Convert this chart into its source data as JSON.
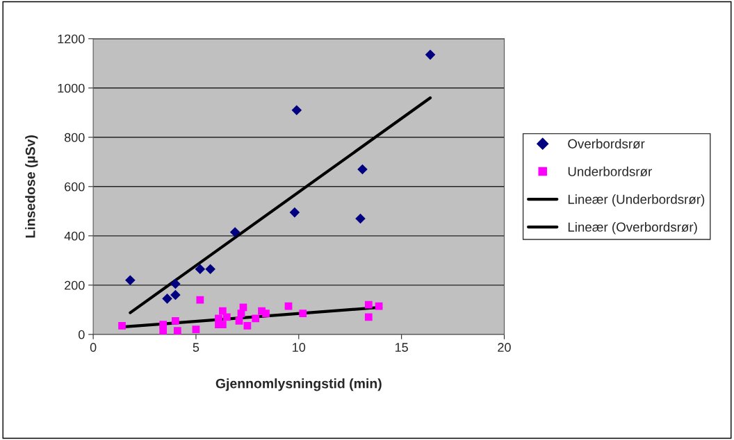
{
  "chart_data": {
    "type": "scatter",
    "xlabel": "Gjennomlysningstid (min)",
    "ylabel": "Linsedose (µSv)",
    "xlim": [
      0,
      20
    ],
    "xticks": [
      0,
      5,
      10,
      15,
      20
    ],
    "ylim": [
      0,
      1200
    ],
    "yticks": [
      0,
      200,
      400,
      600,
      800,
      1000,
      1200
    ],
    "grid": "y",
    "legend": "right",
    "series": [
      {
        "name": "Overbordsrør",
        "marker": "diamond",
        "color": "#000080",
        "x": [
          1.8,
          3.6,
          4.0,
          4.0,
          5.2,
          5.7,
          6.9,
          9.8,
          9.9,
          13.0,
          13.1,
          16.4
        ],
        "values": [
          220,
          145,
          160,
          205,
          265,
          265,
          415,
          495,
          910,
          470,
          670,
          1135
        ]
      },
      {
        "name": "Underbordsrør",
        "marker": "square",
        "color": "#ff00ff",
        "x": [
          1.4,
          3.4,
          3.4,
          4.0,
          4.1,
          5.0,
          5.2,
          6.1,
          6.1,
          6.3,
          6.3,
          6.5,
          7.1,
          7.2,
          7.3,
          7.5,
          7.9,
          8.2,
          8.4,
          9.5,
          10.2,
          13.4,
          13.4,
          13.9
        ],
        "values": [
          35,
          40,
          15,
          55,
          15,
          20,
          140,
          65,
          40,
          95,
          40,
          70,
          55,
          85,
          110,
          35,
          65,
          95,
          85,
          115,
          85,
          120,
          70,
          115
        ]
      },
      {
        "name": "Lineær (Underbordsrør)",
        "type": "line",
        "line_style": "solid",
        "color": "#000000",
        "x": [
          1.4,
          14.0
        ],
        "values": [
          30,
          110
        ]
      },
      {
        "name": "Lineær (Overbordsrør)",
        "type": "line",
        "line_style": "solid",
        "color": "#000000",
        "x": [
          1.8,
          16.4
        ],
        "values": [
          88,
          960
        ]
      }
    ]
  }
}
